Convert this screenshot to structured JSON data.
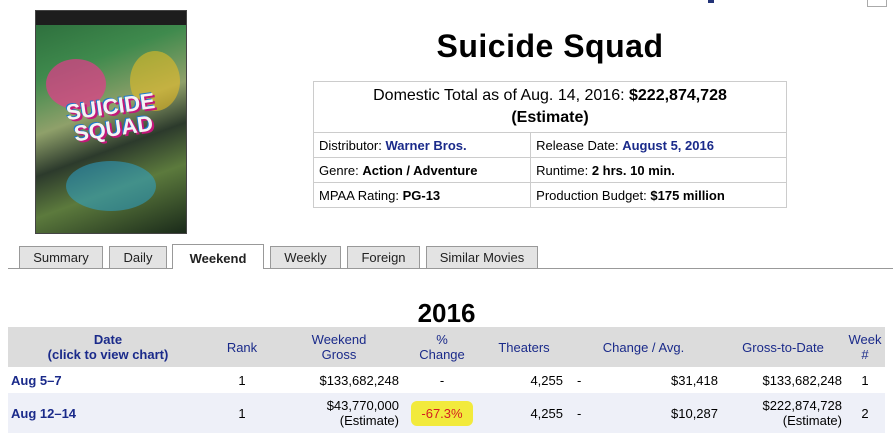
{
  "movie": {
    "title": "Suicide Squad",
    "poster_name": "suicide-squad-poster"
  },
  "info": {
    "total_prefix": "Domestic Total as of Aug. 14, 2016:",
    "total_value": "$222,874,728",
    "total_note": "(Estimate)",
    "distributor_label": "Distributor:",
    "distributor_value": "Warner Bros.",
    "release_label": "Release Date:",
    "release_value": "August 5, 2016",
    "genre_label": "Genre:",
    "genre_value": "Action / Adventure",
    "runtime_label": "Runtime:",
    "runtime_value": "2 hrs. 10 min.",
    "mpaa_label": "MPAA Rating:",
    "mpaa_value": "PG-13",
    "budget_label": "Production Budget:",
    "budget_value": "$175 million"
  },
  "tabs": [
    {
      "label": "Summary",
      "active": false
    },
    {
      "label": "Daily",
      "active": false
    },
    {
      "label": "Weekend",
      "active": true
    },
    {
      "label": "Weekly",
      "active": false
    },
    {
      "label": "Foreign",
      "active": false
    },
    {
      "label": "Similar Movies",
      "active": false
    }
  ],
  "weekend": {
    "year": "2016",
    "headers": {
      "date_line1": "Date",
      "date_line2": "(click to view chart)",
      "rank": "Rank",
      "gross_line1": "Weekend",
      "gross_line2": "Gross",
      "change_line1": "%",
      "change_line2": "Change",
      "theaters": "Theaters",
      "change_avg": "Change / Avg.",
      "gross_to_date": "Gross-to-Date",
      "week_line1": "Week",
      "week_line2": "#"
    },
    "rows": [
      {
        "date": "Aug 5–7",
        "rank": "1",
        "gross": "$133,682,248",
        "gross_note": "",
        "change": "-",
        "theaters": "4,255",
        "theater_change": "-",
        "avg": "$31,418",
        "gross_to_date": "$133,682,248",
        "gtd_note": "",
        "week": "1"
      },
      {
        "date": "Aug 12–14",
        "rank": "1",
        "gross": "$43,770,000",
        "gross_note": "(Estimate)",
        "change": "-67.3%",
        "theaters": "4,255",
        "theater_change": "-",
        "avg": "$10,287",
        "gross_to_date": "$222,874,728",
        "gtd_note": "(Estimate)",
        "week": "2"
      }
    ]
  }
}
